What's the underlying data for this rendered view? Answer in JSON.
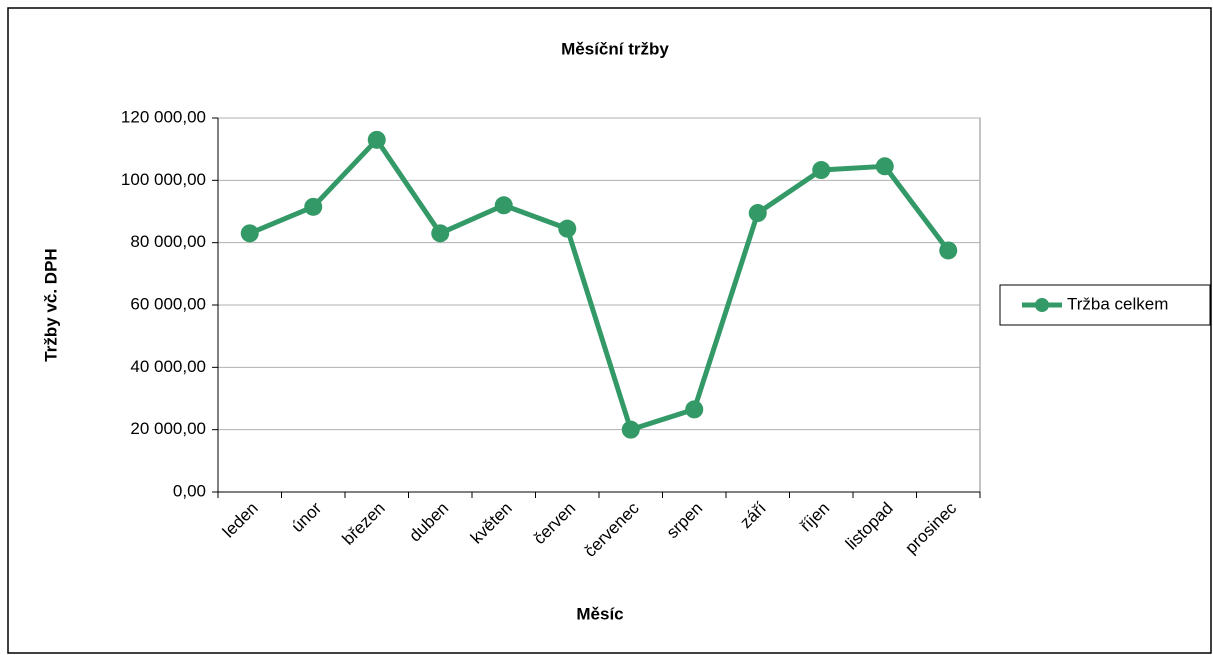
{
  "chart_data": {
    "type": "line",
    "title": "Měsíční tržby",
    "x_label": "Měsíc",
    "y_label": "Tržby vč. DPH",
    "categories": [
      "leden",
      "únor",
      "březen",
      "duben",
      "květen",
      "červen",
      "červenec",
      "srpen",
      "září",
      "říjen",
      "listopad",
      "prosinec"
    ],
    "series": [
      {
        "name": "Tržba celkem",
        "color": "#339966",
        "values": [
          83000,
          91500,
          113000,
          83000,
          92000,
          84500,
          20000,
          26500,
          89500,
          103300,
          104500,
          77500
        ]
      }
    ],
    "ylim": [
      0,
      120000
    ],
    "yticks": [
      {
        "value": 0,
        "label": "0,00"
      },
      {
        "value": 20000,
        "label": "20 000,00"
      },
      {
        "value": 40000,
        "label": "40 000,00"
      },
      {
        "value": 60000,
        "label": "60 000,00"
      },
      {
        "value": 80000,
        "label": "80 000,00"
      },
      {
        "value": 100000,
        "label": "100 000,00"
      },
      {
        "value": 120000,
        "label": "120 000,00"
      }
    ],
    "grid": true,
    "legend": "right"
  }
}
